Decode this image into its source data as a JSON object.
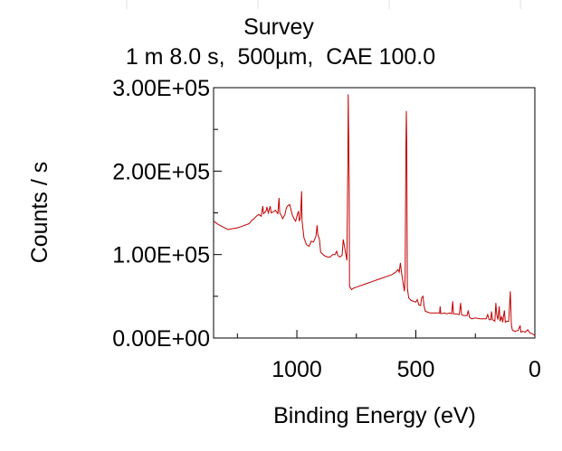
{
  "chart_data": {
    "type": "line",
    "title": "Survey",
    "subtitle": "1 m 8.0 s,  500µm,  CAE 100.0",
    "xlabel": "Binding Energy (eV)",
    "ylabel": "Counts / s",
    "xlim": [
      1350,
      0
    ],
    "ylim": [
      0,
      300000
    ],
    "x_reversed": true,
    "x_ticks": [
      1000,
      500,
      0
    ],
    "x_tick_labels": [
      "1000",
      "500",
      "0"
    ],
    "y_ticks": [
      0,
      100000,
      200000,
      300000
    ],
    "y_tick_labels": [
      "0.00E+00",
      "1.00E+05",
      "2.00E+05",
      "3.00E+05"
    ],
    "grid": false,
    "legend": "none",
    "series": [
      {
        "color": "#c00000",
        "points": [
          [
            1350,
            140000
          ],
          [
            1330,
            136000
          ],
          [
            1310,
            133000
          ],
          [
            1290,
            130000
          ],
          [
            1270,
            131000
          ],
          [
            1250,
            132000
          ],
          [
            1230,
            134000
          ],
          [
            1210,
            136000
          ],
          [
            1200,
            137000
          ],
          [
            1190,
            141000
          ],
          [
            1180,
            143000
          ],
          [
            1170,
            146000
          ],
          [
            1160,
            148000
          ],
          [
            1150,
            146000
          ],
          [
            1143,
            158000
          ],
          [
            1140,
            149000
          ],
          [
            1130,
            152000
          ],
          [
            1126,
            157000
          ],
          [
            1120,
            150000
          ],
          [
            1112,
            158000
          ],
          [
            1108,
            150000
          ],
          [
            1100,
            151000
          ],
          [
            1090,
            153000
          ],
          [
            1080,
            149000
          ],
          [
            1075,
            168000
          ],
          [
            1072,
            150000
          ],
          [
            1065,
            147000
          ],
          [
            1060,
            143000
          ],
          [
            1050,
            148000
          ],
          [
            1045,
            155000
          ],
          [
            1040,
            158000
          ],
          [
            1030,
            160000
          ],
          [
            1025,
            154000
          ],
          [
            1020,
            148000
          ],
          [
            1012,
            143000
          ],
          [
            1005,
            140000
          ],
          [
            998,
            148000
          ],
          [
            993,
            152000
          ],
          [
            990,
            140000
          ],
          [
            985,
            144000
          ],
          [
            980,
            176000
          ],
          [
            978,
            140000
          ],
          [
            970,
            120000
          ],
          [
            960,
            112000
          ],
          [
            950,
            110000
          ],
          [
            945,
            112000
          ],
          [
            940,
            116000
          ],
          [
            930,
            115000
          ],
          [
            920,
            122000
          ],
          [
            915,
            135000
          ],
          [
            912,
            124000
          ],
          [
            905,
            118000
          ],
          [
            900,
            103000
          ],
          [
            890,
            100000
          ],
          [
            880,
            98000
          ],
          [
            870,
            97000
          ],
          [
            860,
            97000
          ],
          [
            850,
            100000
          ],
          [
            840,
            100000
          ],
          [
            833,
            104000
          ],
          [
            828,
            99000
          ],
          [
            820,
            97000
          ],
          [
            810,
            99000
          ],
          [
            805,
            118000
          ],
          [
            800,
            110000
          ],
          [
            790,
            93000
          ],
          [
            786,
            200000
          ],
          [
            784,
            292000
          ],
          [
            782,
            230000
          ],
          [
            780,
            180000
          ],
          [
            779,
            62000
          ],
          [
            770,
            58000
          ],
          [
            760,
            60000
          ],
          [
            750,
            61000
          ],
          [
            740,
            62000
          ],
          [
            720,
            64000
          ],
          [
            700,
            66000
          ],
          [
            680,
            68000
          ],
          [
            660,
            70000
          ],
          [
            640,
            72000
          ],
          [
            620,
            74000
          ],
          [
            600,
            76000
          ],
          [
            585,
            79000
          ],
          [
            575,
            82000
          ],
          [
            570,
            79000
          ],
          [
            565,
            90000
          ],
          [
            560,
            78000
          ],
          [
            548,
            56000
          ],
          [
            545,
            75000
          ],
          [
            542,
            225000
          ],
          [
            540,
            272000
          ],
          [
            538,
            230000
          ],
          [
            536,
            60000
          ],
          [
            530,
            48000
          ],
          [
            520,
            45000
          ],
          [
            510,
            44000
          ],
          [
            500,
            43000
          ],
          [
            494,
            46000
          ],
          [
            488,
            40000
          ],
          [
            480,
            39000
          ],
          [
            476,
            48000
          ],
          [
            470,
            50000
          ],
          [
            466,
            39000
          ],
          [
            460,
            32000
          ],
          [
            450,
            31000
          ],
          [
            440,
            30000
          ],
          [
            420,
            30000
          ],
          [
            400,
            30000
          ],
          [
            398,
            38000
          ],
          [
            395,
            29000
          ],
          [
            380,
            30000
          ],
          [
            370,
            29000
          ],
          [
            360,
            30000
          ],
          [
            350,
            29000
          ],
          [
            345,
            44000
          ],
          [
            342,
            29000
          ],
          [
            330,
            29000
          ],
          [
            318,
            28000
          ],
          [
            312,
            42000
          ],
          [
            308,
            28000
          ],
          [
            300,
            27000
          ],
          [
            285,
            27000
          ],
          [
            280,
            33000
          ],
          [
            275,
            25000
          ],
          [
            265,
            23000
          ],
          [
            250,
            24000
          ],
          [
            230,
            23000
          ],
          [
            215,
            23000
          ],
          [
            205,
            23000
          ],
          [
            198,
            28000
          ],
          [
            192,
            22000
          ],
          [
            185,
            22000
          ],
          [
            182,
            32000
          ],
          [
            178,
            22000
          ],
          [
            168,
            20000
          ],
          [
            164,
            42000
          ],
          [
            160,
            28000
          ],
          [
            155,
            22000
          ],
          [
            150,
            38000
          ],
          [
            146,
            20000
          ],
          [
            140,
            26000
          ],
          [
            135,
            19000
          ],
          [
            128,
            33000
          ],
          [
            124,
            19000
          ],
          [
            118,
            20000
          ],
          [
            110,
            20000
          ],
          [
            103,
            56000
          ],
          [
            99,
            17000
          ],
          [
            95,
            10000
          ],
          [
            85,
            8000
          ],
          [
            70,
            9000
          ],
          [
            62,
            15000
          ],
          [
            58,
            7000
          ],
          [
            50,
            8000
          ],
          [
            40,
            7000
          ],
          [
            30,
            10000
          ],
          [
            20,
            6000
          ],
          [
            10,
            5000
          ],
          [
            0,
            3000
          ]
        ]
      }
    ]
  }
}
